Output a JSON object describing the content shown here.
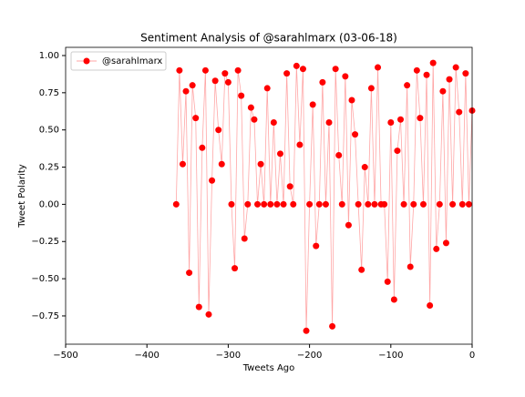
{
  "chart_data": {
    "type": "line",
    "title": "Sentiment Analysis of @sarahlmarx (03-06-18)",
    "xlabel": "Tweets Ago",
    "ylabel": "Tweet Polarity",
    "legend": "upper left",
    "x": [
      -364,
      -360,
      -356,
      -352,
      -348,
      -344,
      -340,
      -336,
      -332,
      -328,
      -324,
      -320,
      -316,
      -312,
      -308,
      -304,
      -300,
      -296,
      -292,
      -288,
      -284,
      -280,
      -276,
      -272,
      -268,
      -264,
      -260,
      -256,
      -252,
      -248,
      -244,
      -240,
      -236,
      -232,
      -228,
      -224,
      -220,
      -216,
      -212,
      -208,
      -204,
      -200,
      -196,
      -192,
      -188,
      -184,
      -180,
      -176,
      -172,
      -168,
      -164,
      -160,
      -156,
      -152,
      -148,
      -144,
      -140,
      -136,
      -132,
      -128,
      -124,
      -120,
      -116,
      -112,
      -108,
      -104,
      -100,
      -96,
      -92,
      -88,
      -84,
      -80,
      -76,
      -72,
      -68,
      -64,
      -60,
      -56,
      -52,
      -48,
      -44,
      -40,
      -36,
      -32,
      -28,
      -24,
      -20,
      -16,
      -12,
      -8,
      -4,
      0
    ],
    "series": [
      {
        "name": "@sarahlmarx",
        "color": "#ff0000",
        "values": [
          0,
          0.9,
          0.27,
          0.76,
          -0.46,
          0.8,
          0.58,
          -0.69,
          0.38,
          0.9,
          -0.74,
          0.16,
          0.83,
          0.5,
          0.27,
          0.88,
          0.82,
          0,
          -0.43,
          0.9,
          0.73,
          -0.23,
          0,
          0.65,
          0.57,
          0,
          0.27,
          0,
          0.78,
          0,
          0.55,
          0,
          0.34,
          0,
          0.88,
          0.12,
          0,
          0.93,
          0.4,
          0.91,
          -0.85,
          0,
          0.67,
          -0.28,
          0,
          0.82,
          0,
          0.55,
          -0.82,
          0.91,
          0.33,
          0,
          0.86,
          -0.14,
          0.7,
          0.47,
          0,
          -0.44,
          0.25,
          0,
          0.78,
          0,
          0.92,
          0,
          0,
          -0.52,
          0.55,
          -0.64,
          0.36,
          0.57,
          0,
          0.8,
          -0.42,
          0,
          0.9,
          0.58,
          0,
          0.87,
          -0.68,
          0.95,
          -0.3,
          0,
          0.76,
          -0.26,
          0.84,
          0,
          0.92,
          0.62,
          0,
          0.88,
          0,
          0.63
        ]
      }
    ],
    "xlim": [
      -500,
      0
    ],
    "xticks": [
      {
        "value": -500,
        "label": "−500"
      },
      {
        "value": -400,
        "label": "−400"
      },
      {
        "value": -300,
        "label": "−300"
      },
      {
        "value": -200,
        "label": "−200"
      },
      {
        "value": -100,
        "label": "−100"
      },
      0
    ],
    "ylim": [
      -0.94,
      1.055
    ],
    "yticks": [
      {
        "value": -0.75,
        "label": "−0.75"
      },
      {
        "value": -0.5,
        "label": "−0.50"
      },
      {
        "value": -0.25,
        "label": "−0.25"
      },
      {
        "value": 0,
        "label": "0.00"
      },
      {
        "value": 0.25,
        "label": "0.25"
      },
      {
        "value": 0.5,
        "label": "0.50"
      },
      {
        "value": 0.75,
        "label": "0.75"
      },
      {
        "value": 1,
        "label": "1.00"
      }
    ],
    "grid": false
  }
}
